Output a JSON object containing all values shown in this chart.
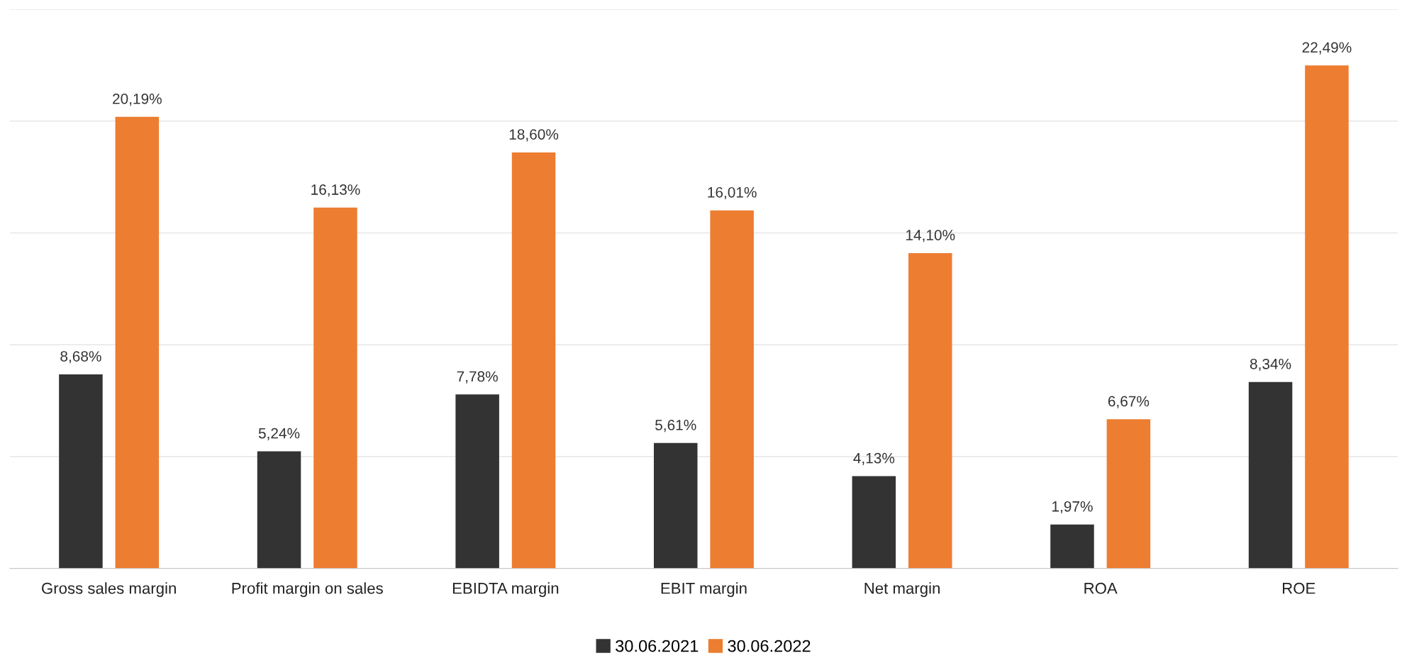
{
  "chart_data": {
    "type": "bar",
    "categories": [
      "Gross sales margin",
      "Profit margin on sales",
      "EBIDTA margin",
      "EBIT margin",
      "Net margin",
      "ROA",
      "ROE"
    ],
    "series": [
      {
        "name": "30.06.2021",
        "color": "#333333",
        "values": [
          8.68,
          5.24,
          7.78,
          5.61,
          4.13,
          1.97,
          8.34
        ],
        "value_labels": [
          "8,68%",
          "5,24%",
          "7,78%",
          "5,61%",
          "4,13%",
          "1,97%",
          "8,34%"
        ]
      },
      {
        "name": "30.06.2022",
        "color": "#ed7d31",
        "values": [
          20.19,
          16.13,
          18.6,
          16.01,
          14.1,
          6.67,
          22.49
        ],
        "value_labels": [
          "20,19%",
          "16,13%",
          "18,60%",
          "16,01%",
          "14,10%",
          "6,67%",
          "22,49%"
        ]
      }
    ],
    "ylim": [
      0,
      25
    ],
    "yticks": [
      {
        "value": 0,
        "label": null
      },
      {
        "value": 5,
        "label": null
      },
      {
        "value": 10,
        "label": null
      },
      {
        "value": 15,
        "label": null
      },
      {
        "value": 20,
        "label": null
      },
      {
        "value": 25,
        "label": null
      }
    ],
    "tick_labels": "x",
    "grid": "y",
    "legend": "bottom"
  }
}
